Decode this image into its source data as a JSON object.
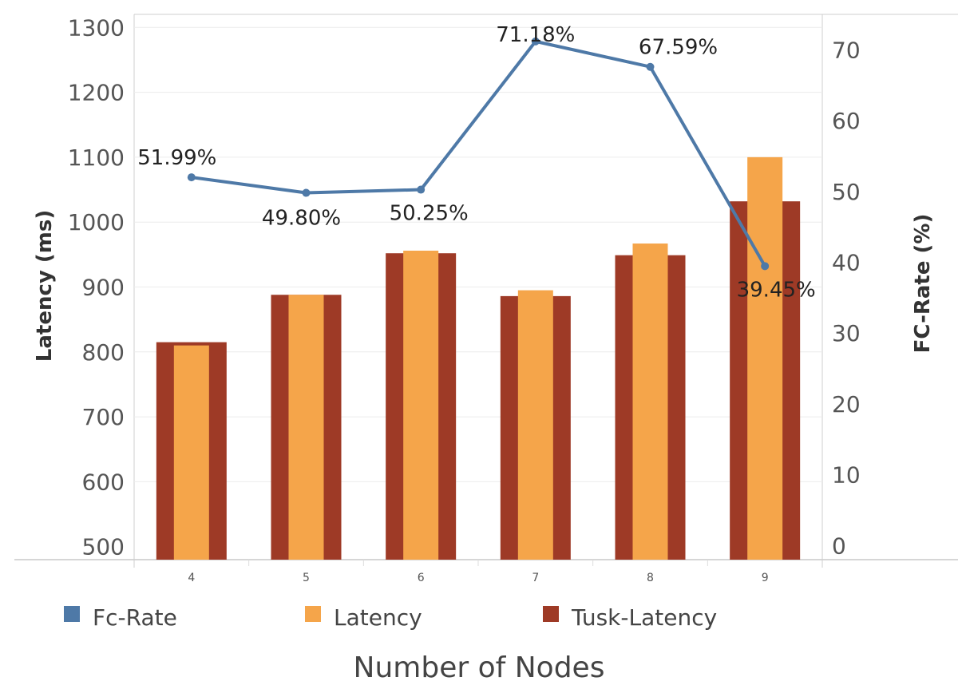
{
  "chart_data": {
    "type": "bar",
    "categories": [
      "4",
      "5",
      "6",
      "7",
      "8",
      "9"
    ],
    "xlabel": "Number of Nodes",
    "ylabel": "Latency (ms)",
    "y2label": "FC-Rate (%)",
    "ylim": [
      480,
      1320
    ],
    "y2lim": [
      -2,
      75
    ],
    "yticks": [
      500,
      600,
      700,
      800,
      900,
      1000,
      1100,
      1200,
      1300
    ],
    "y2ticks": [
      0,
      10,
      20,
      30,
      40,
      50,
      60,
      70
    ],
    "grid": true,
    "legend_position": "bottom",
    "series": [
      {
        "name": "Tusk-Latency",
        "type": "bar",
        "axis": "left",
        "color": "#9e3a26",
        "values": [
          815,
          888,
          952,
          886,
          949,
          1032
        ]
      },
      {
        "name": "Latency",
        "type": "bar",
        "axis": "left",
        "color": "#f5a54a",
        "values": [
          810,
          888,
          956,
          895,
          967,
          1100
        ]
      },
      {
        "name": "Fc-Rate",
        "type": "line",
        "axis": "right",
        "color": "#4e79a7",
        "values": [
          51.99,
          49.8,
          50.25,
          71.18,
          67.59,
          39.45
        ],
        "labels": [
          "51.99%",
          "49.80%",
          "50.25%",
          "71.18%",
          "67.59%",
          "39.45%"
        ]
      }
    ],
    "legend": [
      "Fc-Rate",
      "Latency",
      "Tusk-Latency"
    ]
  }
}
